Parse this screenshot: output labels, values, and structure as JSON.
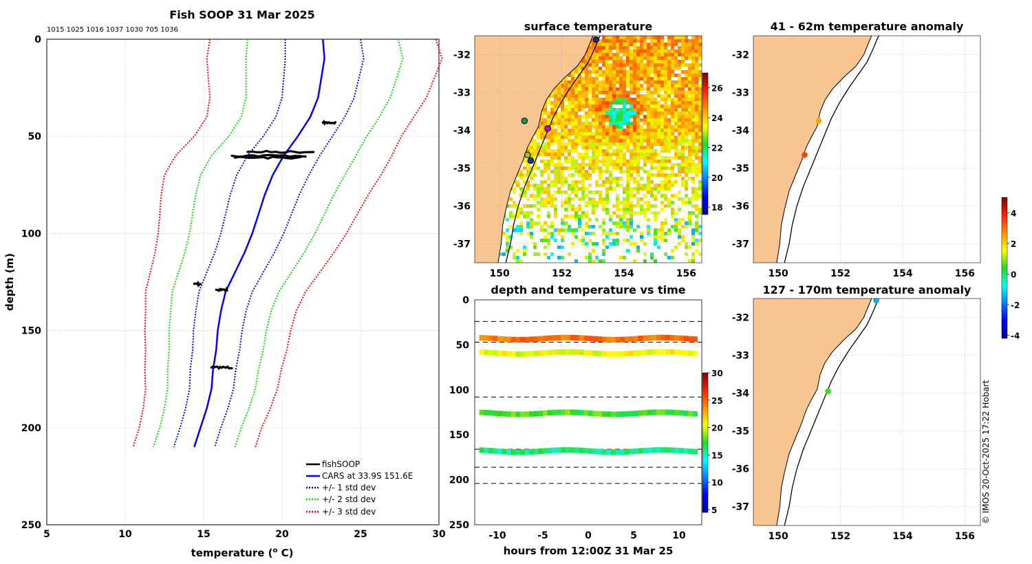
{
  "chart_data": [
    {
      "id": "profile",
      "type": "line",
      "title": "Fish SOOP 31 Mar 2025",
      "subtitle": "1015 1025 1016 1037 1030 705 1036",
      "xlabel": "temperature (",
      "xlabel_sup": "o",
      "xlabel_end": " C)",
      "ylabel": "depth (m)",
      "xlim": [
        5,
        30
      ],
      "ylim": [
        250,
        0
      ],
      "xticks": [
        5,
        10,
        15,
        20,
        25,
        30
      ],
      "yticks": [
        0,
        50,
        100,
        150,
        200,
        250
      ],
      "grid": true,
      "depths": [
        0,
        10,
        20,
        30,
        40,
        50,
        60,
        70,
        80,
        90,
        100,
        110,
        120,
        130,
        140,
        150,
        160,
        170,
        180,
        190,
        200,
        210
      ],
      "cars_mean": [
        22.6,
        22.7,
        22.5,
        22.3,
        21.8,
        21.0,
        20.1,
        19.4,
        18.9,
        18.5,
        18.1,
        17.6,
        17.0,
        16.4,
        16.1,
        15.9,
        15.8,
        15.6,
        15.5,
        15.2,
        14.8,
        14.4
      ],
      "std_1": [
        2.4,
        2.5,
        2.4,
        2.3,
        2.2,
        2.2,
        2.3,
        2.3,
        2.2,
        2.1,
        2.0,
        1.9,
        1.8,
        1.7,
        1.6,
        1.55,
        1.5,
        1.45,
        1.4,
        1.35,
        1.3,
        1.3
      ],
      "series": [
        {
          "name": "fishSOOP",
          "color": "#000000",
          "style": "solid"
        },
        {
          "name": "CARS at 33.9S 151.6E",
          "color": "#0000ff",
          "style": "solid"
        },
        {
          "name": "+/- 1 std dev",
          "color": "#0000ff",
          "style": "dotted",
          "k": 1
        },
        {
          "name": "+/- 2 std dev",
          "color": "#00dd00",
          "style": "dotted",
          "k": 2
        },
        {
          "name": "+/- 3 std dev",
          "color": "#ff0000",
          "style": "dotted",
          "k": 3
        }
      ],
      "fishsoop_obs": [
        {
          "depth": 43,
          "t_min": 22.6,
          "t_max": 23.4
        },
        {
          "depth": 58,
          "t_min": 17.8,
          "t_max": 22.0
        },
        {
          "depth": 60,
          "t_min": 16.8,
          "t_max": 21.5
        },
        {
          "depth": 61,
          "t_min": 17.0,
          "t_max": 21.2
        },
        {
          "depth": 126,
          "t_min": 14.4,
          "t_max": 14.8
        },
        {
          "depth": 129,
          "t_min": 15.8,
          "t_max": 16.5
        },
        {
          "depth": 169,
          "t_min": 15.5,
          "t_max": 16.8
        }
      ],
      "legend_position": "bottom-right"
    },
    {
      "id": "surface",
      "type": "heatmap",
      "title": "surface temperature",
      "xlim": [
        149.2,
        156.5
      ],
      "ylim": [
        -37.5,
        -31.5
      ],
      "xticks": [
        150,
        152,
        154,
        156
      ],
      "yticks": [
        -32,
        -33,
        -34,
        -35,
        -36,
        -37
      ],
      "colorbar": {
        "min": 17.5,
        "max": 27,
        "ticks": [
          18,
          20,
          22,
          24,
          26
        ]
      },
      "vessel_points": [
        {
          "lon": 153.1,
          "lat": -31.6,
          "color": "#1a2a80"
        },
        {
          "lon": 150.8,
          "lat": -33.75,
          "color": "#119955"
        },
        {
          "lon": 151.55,
          "lat": -33.95,
          "color": "#cc00cc"
        },
        {
          "lon": 150.9,
          "lat": -34.65,
          "color": "#88cc44"
        },
        {
          "lon": 151.0,
          "lat": -34.8,
          "color": "#223399"
        }
      ]
    },
    {
      "id": "anomaly_upper",
      "type": "scatter",
      "title": "41 - 62m temperature anomaly",
      "xlim": [
        149.2,
        156.5
      ],
      "ylim": [
        -37.5,
        -31.5
      ],
      "xticks": [
        150,
        152,
        154,
        156
      ],
      "yticks": [
        -32,
        -33,
        -34,
        -35,
        -36,
        -37
      ],
      "points": [
        {
          "lon": 151.3,
          "lat": -33.75,
          "anomaly": 2.5
        },
        {
          "lon": 150.85,
          "lat": -34.65,
          "anomaly": 3.5
        }
      ]
    },
    {
      "id": "anomaly_lower",
      "type": "scatter",
      "title": "127 - 170m temperature anomaly",
      "xlim": [
        149.2,
        156.5
      ],
      "ylim": [
        -37.5,
        -31.5
      ],
      "xticks": [
        150,
        152,
        154,
        156
      ],
      "yticks": [
        -32,
        -33,
        -34,
        -35,
        -36,
        -37
      ],
      "points": [
        {
          "lon": 153.15,
          "lat": -31.55,
          "anomaly": -1.5
        },
        {
          "lon": 151.6,
          "lat": -33.95,
          "anomaly": 0.5
        }
      ],
      "colorbar": {
        "min": -4.2,
        "max": 5,
        "ticks": [
          4,
          2,
          0,
          -2,
          -4
        ]
      }
    },
    {
      "id": "timeseries",
      "type": "scatter",
      "title": "depth and temperature vs time",
      "xlabel": "hours from 12:00Z 31 Mar 25",
      "xlim": [
        -12.5,
        12.5
      ],
      "ylim": [
        250,
        0
      ],
      "xticks": [
        -10,
        -5,
        0,
        5,
        10
      ],
      "yticks": [
        0,
        50,
        100,
        150,
        200,
        250
      ],
      "dashed_depths": [
        24,
        47,
        108,
        166,
        186,
        204
      ],
      "bands": [
        {
          "depth": 43,
          "temperature": 24.5
        },
        {
          "depth": 59,
          "temperature": 20.5
        },
        {
          "depth": 126,
          "temperature": 17.5
        },
        {
          "depth": 168,
          "temperature": 16.0
        }
      ],
      "colorbar": {
        "min": 4.5,
        "max": 30,
        "ticks": [
          30,
          25,
          20,
          15,
          10,
          5
        ]
      }
    }
  ],
  "copyright": "© IMOS 20-Oct-2025 17:22 Hobart"
}
